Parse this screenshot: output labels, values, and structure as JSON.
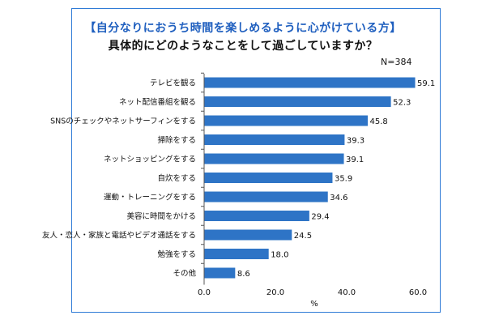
{
  "title_line1": "【自分なりにおうち時間を楽しめるように心がけている方】",
  "title_line2": "具体的にどのようなことをして過ごしていますか？",
  "n_label": "N=384",
  "colors": {
    "bar": "#2e74c6",
    "frame": "#2f7bd6",
    "title_accent": "#1f5fbf"
  },
  "chart_data": {
    "type": "bar",
    "orientation": "horizontal",
    "categories": [
      "テレビを観る",
      "ネット配信番組を観る",
      "SNSのチェックやネットサーフィンをする",
      "掃除をする",
      "ネットショッピングをする",
      "自炊をする",
      "運動・トレーニングをする",
      "美容に時間をかける",
      "友人・恋人・家族と電話やビデオ通話をする",
      "勉強をする",
      "その他"
    ],
    "values": [
      59.1,
      52.3,
      45.8,
      39.3,
      39.1,
      35.9,
      34.6,
      29.4,
      24.5,
      18.0,
      8.6
    ],
    "value_labels": [
      "59.1",
      "52.3",
      "45.8",
      "39.3",
      "39.1",
      "35.9",
      "34.6",
      "29.4",
      "24.5",
      "18.0",
      "8.6"
    ],
    "xlim": [
      0,
      60
    ],
    "ticks": [
      "0.0",
      "20.0",
      "40.0",
      "60.0"
    ],
    "tick_values": [
      0,
      20,
      40,
      60
    ],
    "xlabel": "%",
    "grid": false
  }
}
